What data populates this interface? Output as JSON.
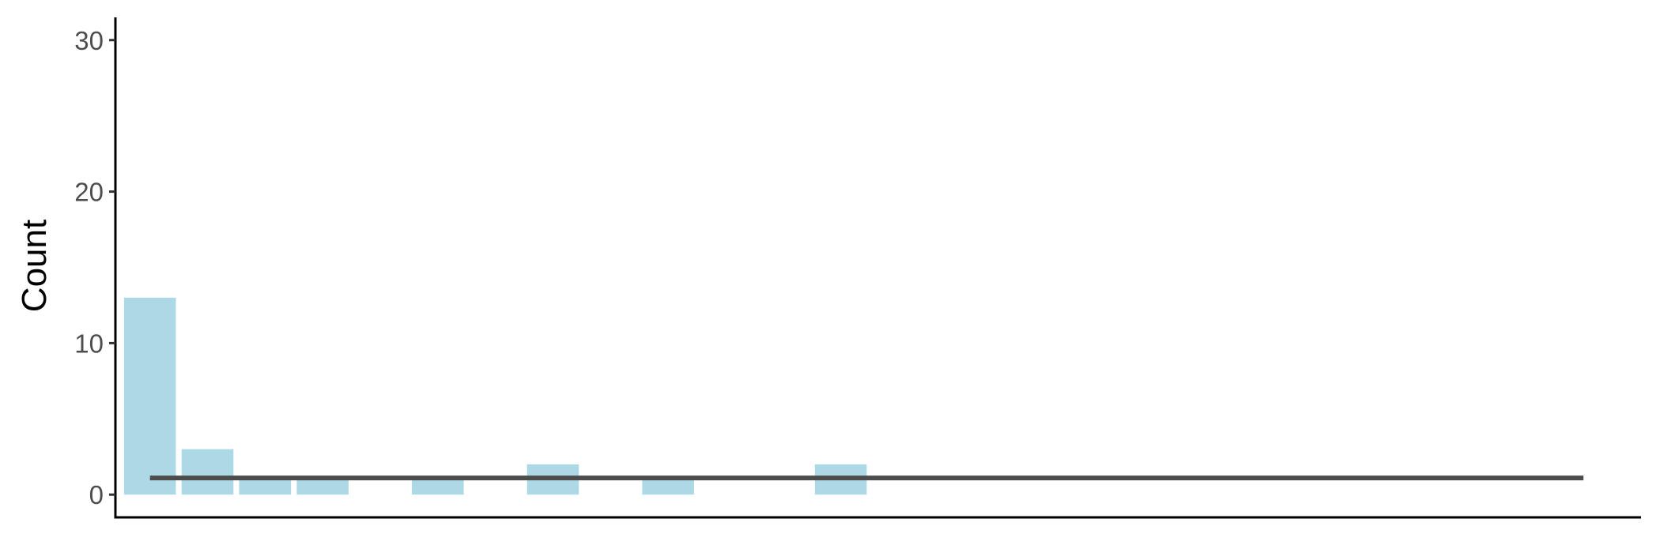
{
  "chart_data": {
    "type": "bar",
    "title": "",
    "xlabel": "",
    "ylabel": "Count",
    "xlim": [
      0.4,
      26.9
    ],
    "ylim": [
      -1.5,
      31.5
    ],
    "x": [
      1,
      2,
      3,
      4,
      6,
      8,
      10,
      13
    ],
    "values": [
      13,
      3,
      1,
      1,
      1,
      2,
      1,
      2
    ],
    "yticks": [
      0,
      10,
      20,
      30
    ],
    "ytick_labels": [
      "0",
      "10",
      "20",
      "30"
    ],
    "reference_line": {
      "value": 1.1,
      "x_range": [
        1,
        25.9
      ]
    },
    "grid": false,
    "colors": {
      "bar": "#add8e6",
      "line": "#4d4d4d",
      "axis": "#000000"
    }
  }
}
